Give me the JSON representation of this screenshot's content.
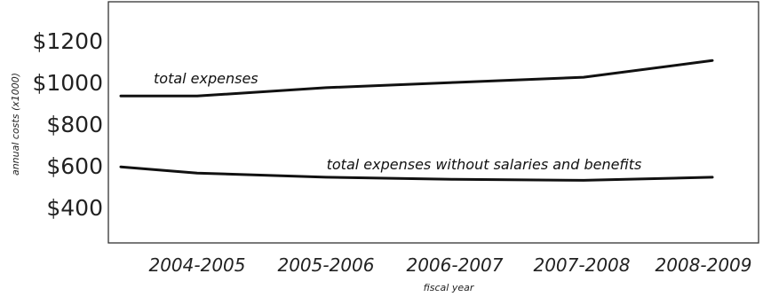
{
  "chart_data": {
    "type": "line",
    "title": "",
    "xlabel": "fiscal year",
    "ylabel": "annual costs (x1000)",
    "categories": [
      "2004-2005",
      "2005-2006",
      "2006-2007",
      "2007-2008",
      "2008-2009"
    ],
    "y_ticks": [
      "$1200",
      "$1000",
      "$800",
      "$600",
      "$400"
    ],
    "ylim": [
      300,
      1400
    ],
    "grid": false,
    "series": [
      {
        "name": "total expenses",
        "x": [
          "",
          "2004-2005",
          "2005-2006",
          "2006-2007",
          "2007-2008",
          "2008-2009"
        ],
        "values": [
          935,
          935,
          975,
          1000,
          1025,
          1105
        ]
      },
      {
        "name": "total expenses without salaries and benefits",
        "x": [
          "",
          "2004-2005",
          "2005-2006",
          "2006-2007",
          "2007-2008",
          "2008-2009"
        ],
        "values": [
          595,
          565,
          545,
          535,
          530,
          545
        ]
      }
    ]
  }
}
